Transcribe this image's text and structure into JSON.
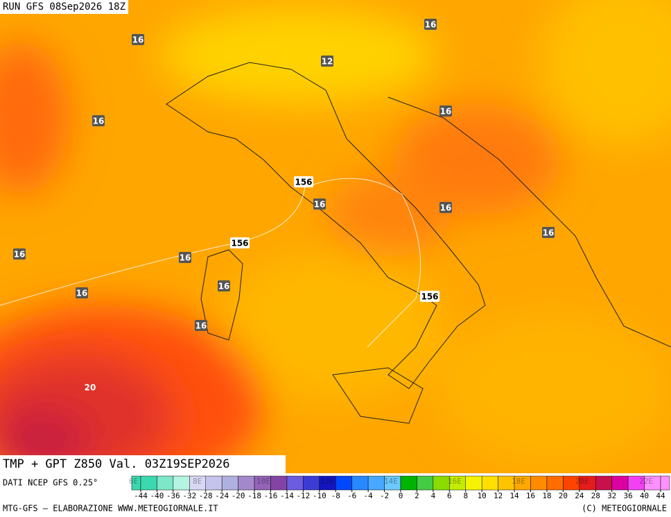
{
  "header": {
    "run": "RUN GFS 08Sep2026 18Z"
  },
  "map": {
    "contour_labels": [
      "16",
      "16",
      "12",
      "16",
      "16",
      "156",
      "16",
      "16",
      "16",
      "156",
      "16",
      "16",
      "16",
      "16",
      "156",
      "16",
      "20"
    ]
  },
  "footer": {
    "title": "TMP + GPT Z850 Val. 03Z19SEP2026",
    "source": "DATI NCEP GFS 0.25°",
    "credit": "MTG-GFS – ELABORAZIONE WWW.METEOGIORNALE.IT",
    "copyright": "(C) METEOGIORNALE",
    "longitudes": [
      "6E",
      "8E",
      "10E",
      "12E",
      "14E",
      "16E",
      "18E",
      "20E",
      "22E"
    ]
  },
  "colorbar": {
    "ticks": [
      -44,
      -40,
      -36,
      -32,
      -28,
      -24,
      -20,
      -18,
      -16,
      -14,
      -12,
      -10,
      -8,
      -6,
      -4,
      -2,
      0,
      2,
      4,
      6,
      8,
      10,
      12,
      14,
      16,
      18,
      20,
      24,
      28,
      32,
      36,
      40,
      44
    ],
    "colors": [
      "#3cd8b0",
      "#7ce8c8",
      "#b4f4e0",
      "#d8d8f4",
      "#c4c4ec",
      "#b0b0e0",
      "#a488cc",
      "#9464b8",
      "#8444a4",
      "#6c5ce0",
      "#3c3cd4",
      "#1414c0",
      "#0048ff",
      "#2888ff",
      "#48a8ff",
      "#6cc8ff",
      "#00b400",
      "#44cc44",
      "#88dc00",
      "#c4ec00",
      "#f4f400",
      "#ffe000",
      "#ffc400",
      "#ffa800",
      "#ff8c00",
      "#ff6c00",
      "#ff4400",
      "#e41c1c",
      "#c8104c",
      "#dc00a0",
      "#f440f4",
      "#ff90ff"
    ]
  }
}
